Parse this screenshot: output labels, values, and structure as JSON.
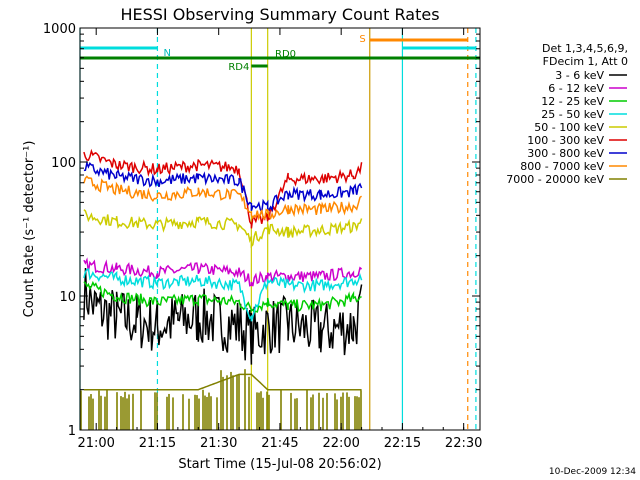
{
  "chart_data": {
    "type": "line",
    "title": "HESSI Observing Summary Count Rates",
    "xlabel": "Start Time (15-Jul-08 20:56:02)",
    "ylabel": "Count Rate (s⁻¹ detector⁻¹)",
    "ylog": true,
    "ylim": [
      1,
      1000
    ],
    "xlim": [
      "20:56:02",
      "22:34:00"
    ],
    "x_tick_labels": [
      "21:00",
      "21:15",
      "21:30",
      "21:45",
      "22:00",
      "22:15",
      "22:30"
    ],
    "y_tick_labels": [
      "1",
      "10",
      "100",
      "1000"
    ],
    "legend_title": [
      "Det 1,3,4,5,6,9,",
      "FDecim 1, Att 0"
    ],
    "legend_position": "right",
    "series": [
      {
        "name": "3 - 6 keV",
        "color": "#000000",
        "x": [
          "20:57",
          "21:00",
          "21:05",
          "21:10",
          "21:15",
          "21:20",
          "21:25",
          "21:30",
          "21:35",
          "21:38",
          "21:42",
          "21:47",
          "21:55",
          "22:03",
          "22:05"
        ],
        "values": [
          11,
          8,
          7,
          6.5,
          6,
          6.5,
          7,
          6.5,
          6,
          5,
          6,
          6,
          5.5,
          6,
          8
        ]
      },
      {
        "name": "6 - 12 keV",
        "color": "#cc00cc",
        "x": [
          "20:57",
          "21:05",
          "21:15",
          "21:25",
          "21:35",
          "21:38",
          "21:42",
          "21:47",
          "21:55",
          "22:03",
          "22:05"
        ],
        "values": [
          17,
          16,
          15,
          16,
          15,
          13,
          14,
          14,
          14,
          15,
          16
        ]
      },
      {
        "name": "12 - 25 keV",
        "color": "#00cc00",
        "x": [
          "20:57",
          "21:05",
          "21:15",
          "21:25",
          "21:35",
          "21:38",
          "21:42",
          "21:47",
          "21:55",
          "22:03",
          "22:05"
        ],
        "values": [
          12,
          10,
          9,
          9.5,
          9,
          8,
          9,
          8.5,
          8.5,
          9.5,
          10
        ]
      },
      {
        "name": "25 - 50 keV",
        "color": "#00dddd",
        "x": [
          "20:57",
          "21:05",
          "21:15",
          "21:25",
          "21:35",
          "21:38",
          "21:42",
          "21:47",
          "21:55",
          "22:03",
          "22:05"
        ],
        "values": [
          15,
          13.5,
          12.5,
          13,
          12,
          7,
          13,
          12,
          12,
          13,
          14
        ]
      },
      {
        "name": "50 - 100 keV",
        "color": "#cccc00",
        "x": [
          "20:57",
          "21:05",
          "21:15",
          "21:25",
          "21:35",
          "21:38",
          "21:42",
          "21:47",
          "21:55",
          "22:03",
          "22:05"
        ],
        "values": [
          40,
          36,
          34,
          36,
          34,
          26,
          32,
          30,
          31,
          33,
          36
        ]
      },
      {
        "name": "100 - 300 keV",
        "color": "#dd0000",
        "x": [
          "20:57",
          "21:05",
          "21:15",
          "21:25",
          "21:35",
          "21:38",
          "21:42",
          "21:47",
          "21:55",
          "22:03",
          "22:05"
        ],
        "values": [
          115,
          95,
          88,
          95,
          90,
          35,
          38,
          75,
          75,
          80,
          90
        ]
      },
      {
        "name": "300 - 800 keV",
        "color": "#0000cc",
        "x": [
          "20:57",
          "21:05",
          "21:15",
          "21:25",
          "21:35",
          "21:38",
          "21:42",
          "21:47",
          "21:55",
          "22:03",
          "22:05"
        ],
        "values": [
          92,
          78,
          72,
          76,
          72,
          48,
          46,
          58,
          57,
          60,
          65
        ]
      },
      {
        "name": "800 - 7000 keV",
        "color": "#ff8800",
        "x": [
          "20:57",
          "21:05",
          "21:15",
          "21:25",
          "21:35",
          "21:38",
          "21:42",
          "21:47",
          "21:55",
          "22:03",
          "22:05"
        ],
        "values": [
          72,
          62,
          56,
          60,
          56,
          42,
          40,
          45,
          44,
          47,
          52
        ]
      },
      {
        "name": "7000 - 20000 keV",
        "color": "#808000",
        "x": [
          "20:57",
          "21:05",
          "21:15",
          "21:25",
          "21:35",
          "21:38",
          "21:42",
          "21:47",
          "21:55",
          "22:03",
          "22:05"
        ],
        "values": [
          2,
          2,
          2,
          2,
          2.6,
          2.6,
          2,
          2,
          2,
          2,
          2
        ]
      }
    ],
    "annotations": [
      {
        "label": "N",
        "color": "#00dddd",
        "x_start": "20:56:02",
        "x_end": "21:15"
      },
      {
        "label": "S",
        "color": "#ff8800",
        "x_start": "22:07",
        "x_end": "22:31"
      },
      {
        "label": "",
        "color": "#00dddd",
        "x_start": "22:15",
        "x_end": "22:33"
      },
      {
        "label": "RD0",
        "color": "#008000",
        "x_start": "20:56:02",
        "x_end": "22:34"
      },
      {
        "label": "RD4",
        "color": "#008000",
        "x_start": "21:38",
        "x_end": "21:42"
      }
    ],
    "vertical_lines": [
      {
        "x": "20:56:02",
        "color": "#00dddd",
        "style": "solid"
      },
      {
        "x": "21:15",
        "color": "#00dddd",
        "style": "dashed"
      },
      {
        "x": "21:38",
        "color": "#cccc00",
        "style": "solid"
      },
      {
        "x": "21:42",
        "color": "#cccc00",
        "style": "solid"
      },
      {
        "x": "22:07",
        "color": "#cc9900",
        "style": "solid"
      },
      {
        "x": "22:15",
        "color": "#00dddd",
        "style": "solid"
      },
      {
        "x": "22:31",
        "color": "#ff8800",
        "style": "dashed"
      },
      {
        "x": "22:33",
        "color": "#00dddd",
        "style": "dashed"
      }
    ],
    "timestamp": "10-Dec-2009 12:34"
  }
}
